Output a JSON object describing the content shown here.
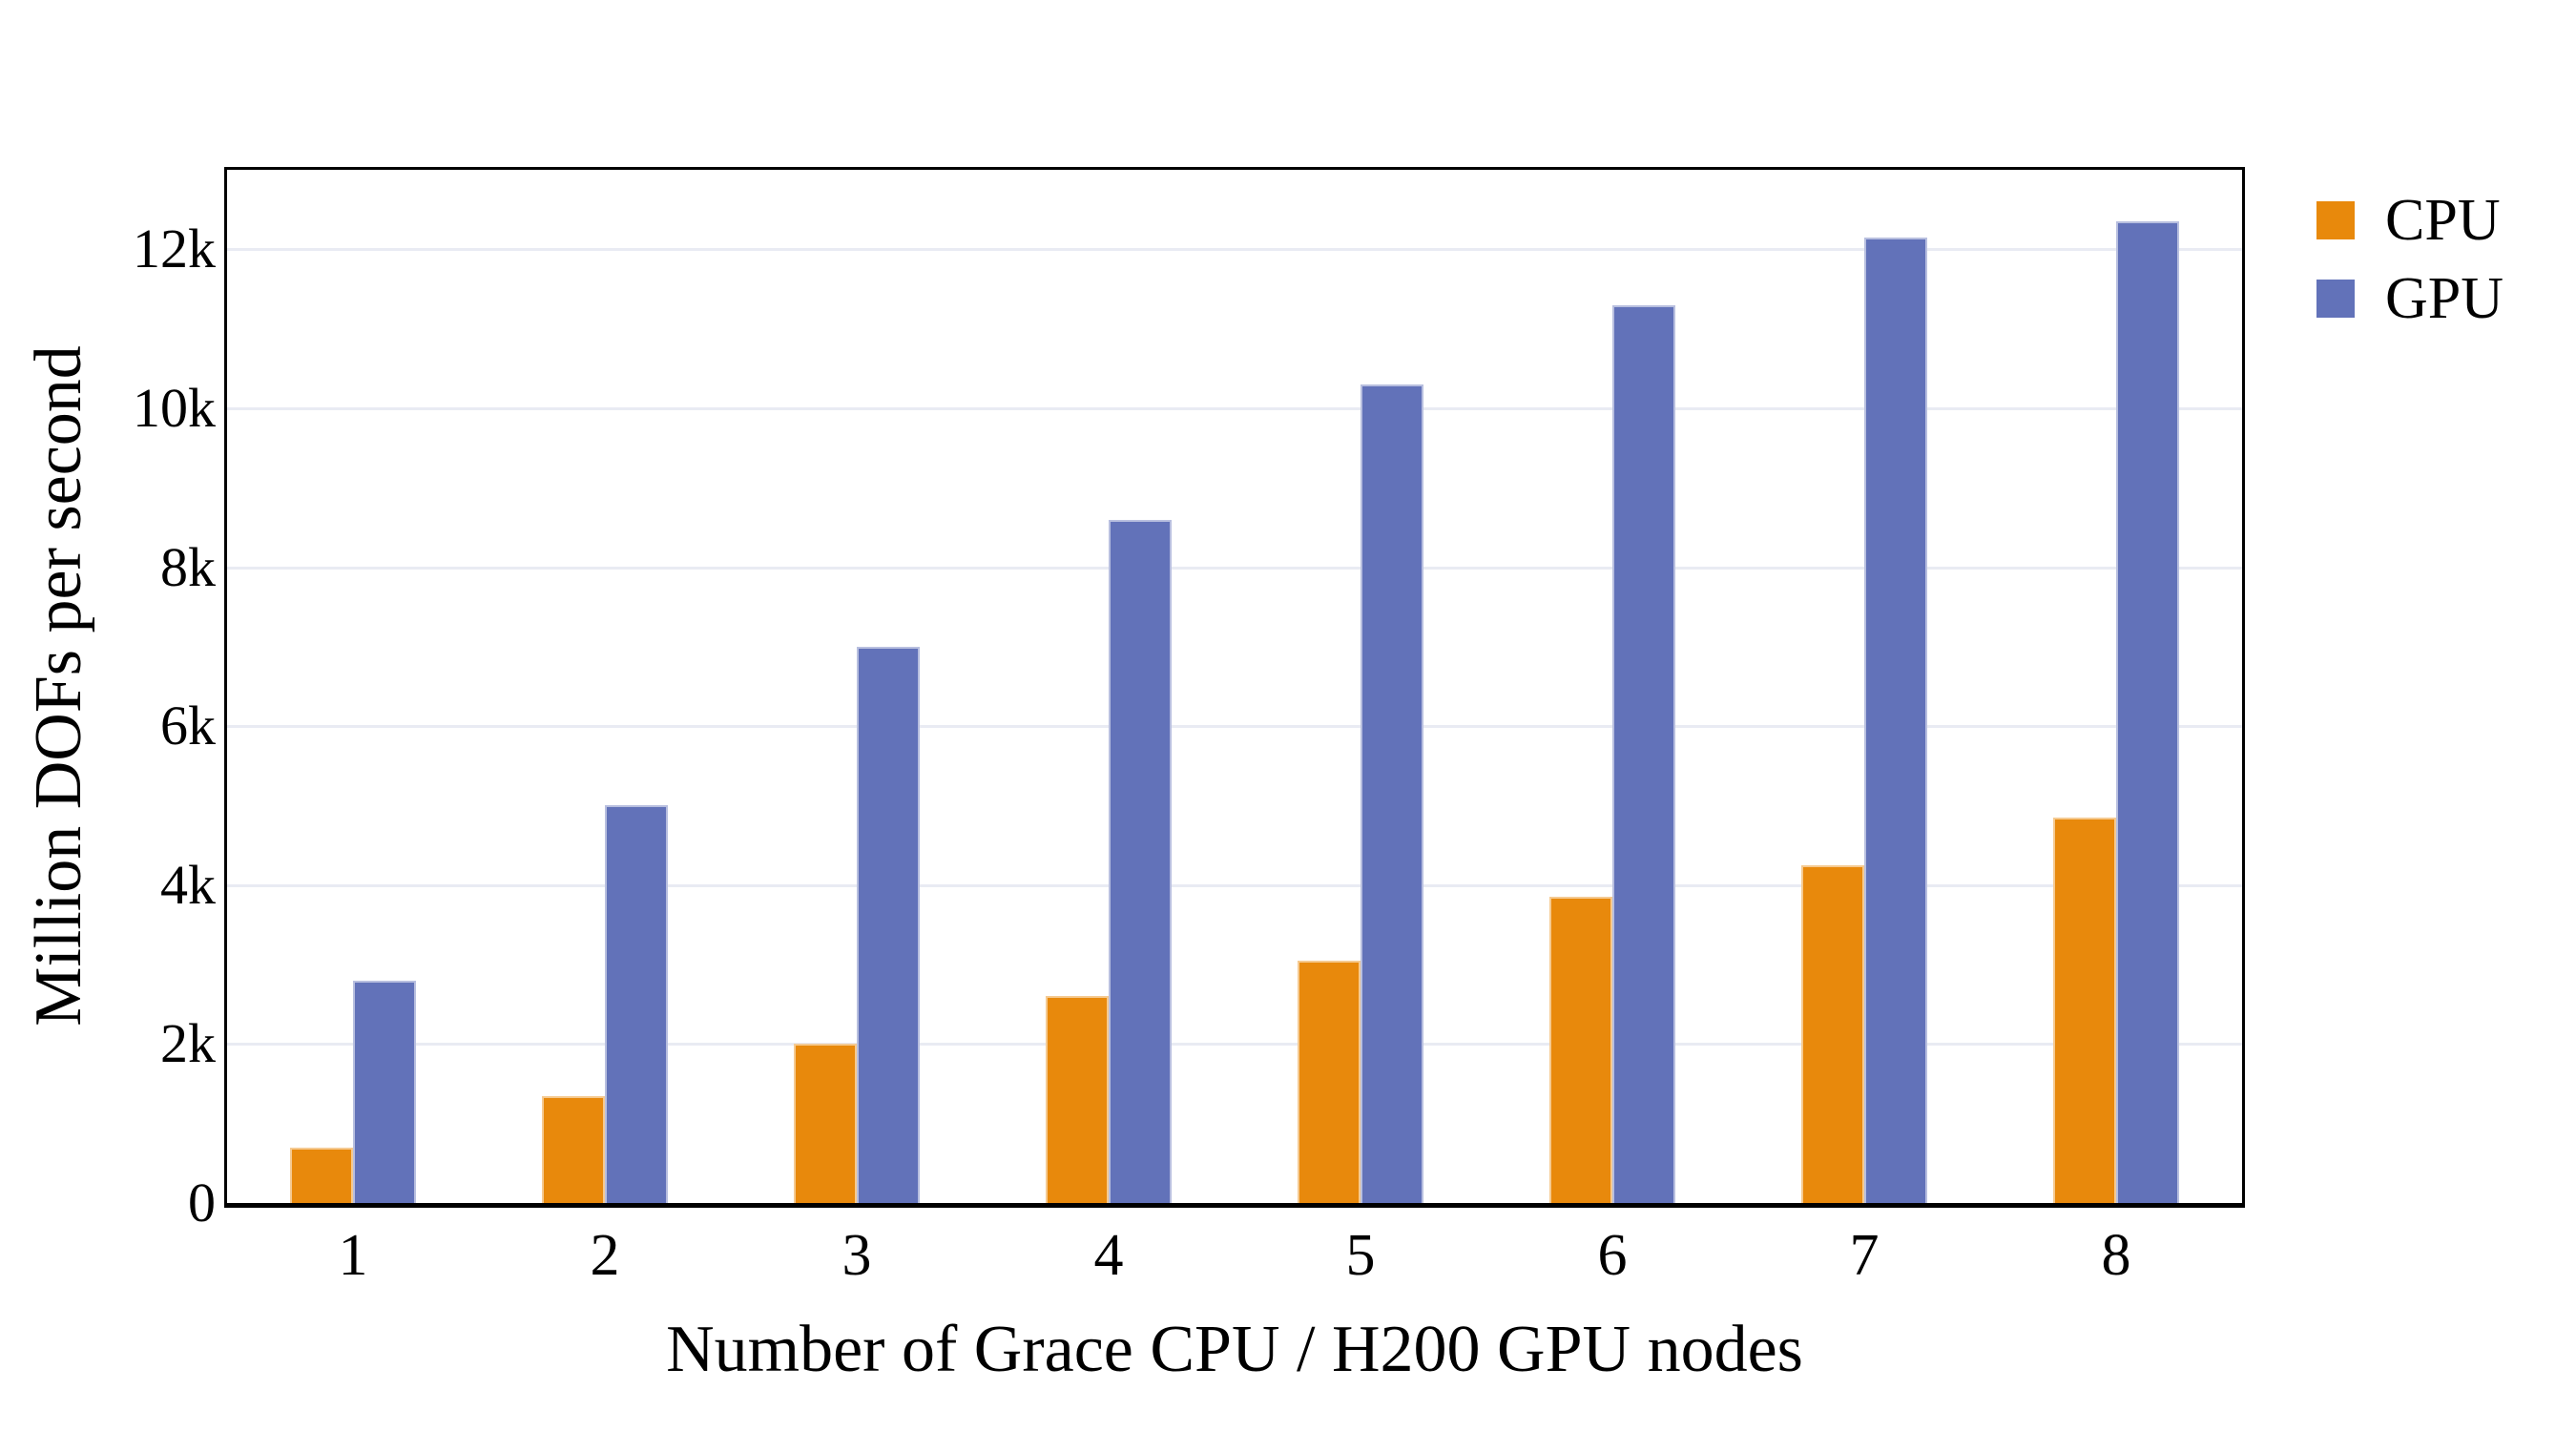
{
  "figure": {
    "background": "#ffffff"
  },
  "chart_data": {
    "type": "bar",
    "title": "",
    "xlabel": "Number of Grace CPU / H200 GPU nodes",
    "ylabel": "Million DOFs per second",
    "categories": [
      "1",
      "2",
      "3",
      "4",
      "5",
      "6",
      "7",
      "8"
    ],
    "series": [
      {
        "name": "CPU",
        "color": "#E8890C",
        "values": [
          700,
          1350,
          2000,
          2600,
          3050,
          3850,
          4250,
          4850
        ]
      },
      {
        "name": "GPU",
        "color": "#6272B9",
        "values": [
          2800,
          5000,
          7000,
          8600,
          10300,
          11300,
          12150,
          12350
        ]
      }
    ],
    "ylim": [
      0,
      13000
    ],
    "yticks": [
      {
        "value": 0,
        "label": "0"
      },
      {
        "value": 2000,
        "label": "2k"
      },
      {
        "value": 4000,
        "label": "4k"
      },
      {
        "value": 6000,
        "label": "6k"
      },
      {
        "value": 8000,
        "label": "8k"
      },
      {
        "value": 10000,
        "label": "10k"
      },
      {
        "value": 12000,
        "label": "12k"
      }
    ],
    "grid": true,
    "gridline_color": "#E9EBF3",
    "axis_color": "#000000",
    "legend_position": "right-outside"
  }
}
